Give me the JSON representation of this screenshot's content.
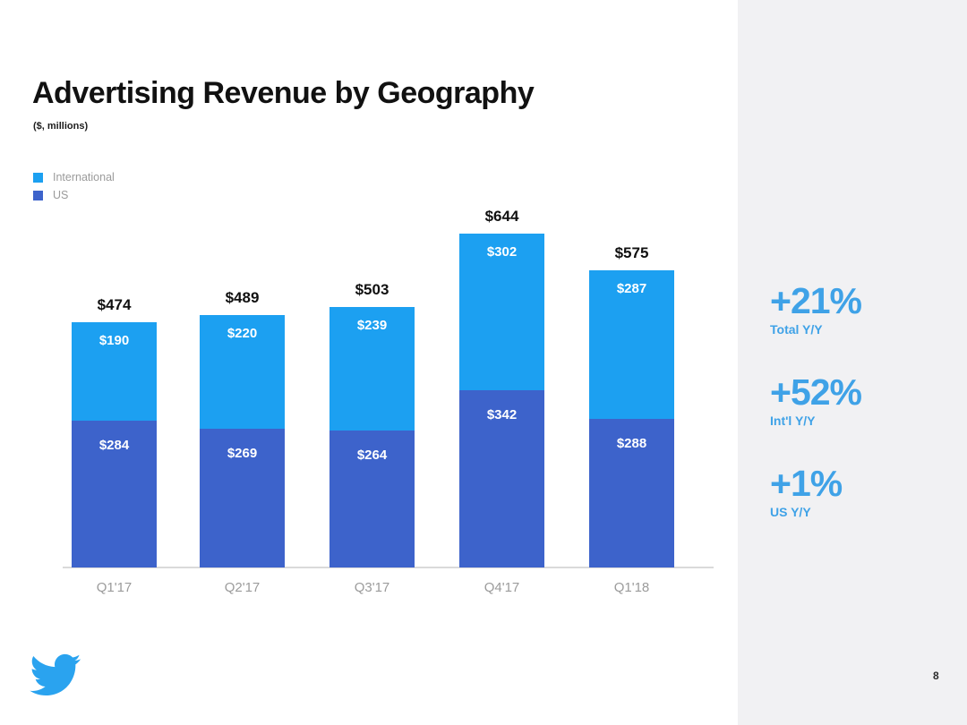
{
  "slide": {
    "title": "Advertising Revenue by Geography",
    "subtitle": "($, millions)"
  },
  "legend": {
    "items": [
      {
        "label": "International",
        "color": "#1ca0f1"
      },
      {
        "label": "US",
        "color": "#3d63cb"
      }
    ]
  },
  "chart_data": {
    "type": "bar",
    "stacked": true,
    "title": "Advertising Revenue by Geography",
    "units": "$, millions",
    "categories": [
      "Q1'17",
      "Q2'17",
      "Q3'17",
      "Q4'17",
      "Q1'18"
    ],
    "series": [
      {
        "name": "International",
        "color": "#1ca0f1",
        "values": [
          190,
          220,
          239,
          302,
          287
        ]
      },
      {
        "name": "US",
        "color": "#3d63cb",
        "values": [
          284,
          269,
          264,
          342,
          288
        ]
      }
    ],
    "totals": [
      474,
      489,
      503,
      644,
      575
    ],
    "value_prefix": "$",
    "ylim": [
      0,
      660
    ],
    "grid": false,
    "legend_position": "top-left"
  },
  "stats": {
    "items": [
      {
        "value": "+21%",
        "label": "Total Y/Y"
      },
      {
        "value": "+52%",
        "label": "Int'l Y/Y"
      },
      {
        "value": "+1%",
        "label": "US Y/Y"
      }
    ],
    "accent_color": "#3fa2e7"
  },
  "footer": {
    "logo": "twitter-bird",
    "logo_color": "#2aa3ef",
    "page_number": "8"
  }
}
